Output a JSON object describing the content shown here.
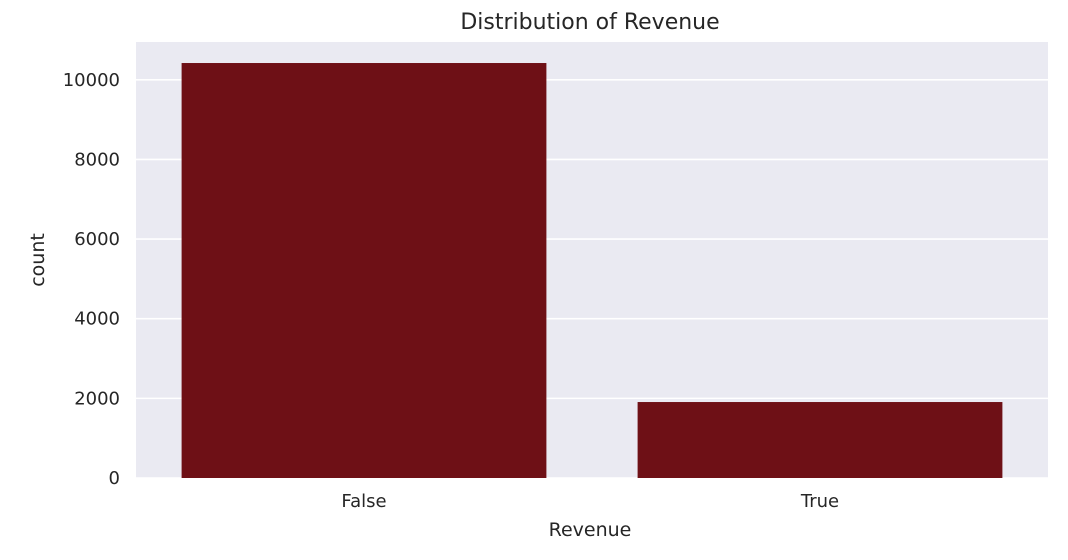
{
  "chart_data": {
    "type": "bar",
    "title": "Distribution of Revenue",
    "xlabel": "Revenue",
    "ylabel": "count",
    "categories": [
      "False",
      "True"
    ],
    "values": [
      10422,
      1908
    ],
    "ylim": [
      0,
      10950
    ],
    "yticks": [
      0,
      2000,
      4000,
      6000,
      8000,
      10000
    ],
    "grid": true,
    "colors": {
      "bar": "#6e1016",
      "plot_background": "#eaeaf2",
      "grid": "#ffffff",
      "text": "#262626"
    }
  }
}
